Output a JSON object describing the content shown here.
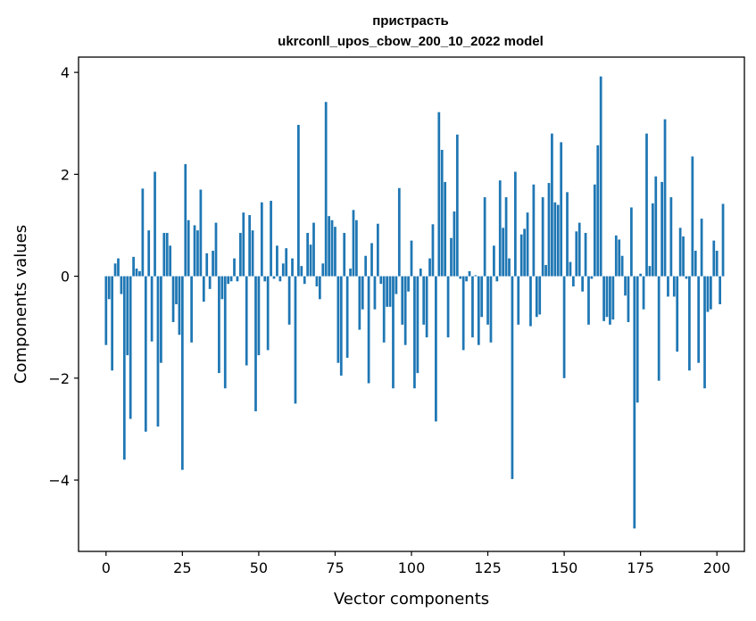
{
  "chart_data": {
    "type": "bar",
    "title_line1": "пристрасть",
    "title_line2": "ukrconll_upos_cbow_200_10_2022 model",
    "xlabel": "Vector components",
    "ylabel": "Components values",
    "xlim": [
      -9,
      209
    ],
    "ylim": [
      -5.4,
      4.3
    ],
    "xticks": [
      0,
      25,
      50,
      75,
      100,
      125,
      150,
      175,
      200
    ],
    "xtick_labels": [
      "0",
      "25",
      "50",
      "75",
      "100",
      "125",
      "150",
      "175",
      "200"
    ],
    "yticks": [
      -4,
      -2,
      0,
      2,
      4
    ],
    "ytick_labels": [
      "−4",
      "−2",
      "0",
      "2",
      "4"
    ],
    "bar_color": "#1f77b4",
    "values": [
      -1.35,
      -0.45,
      -1.85,
      0.25,
      0.35,
      -0.35,
      -3.6,
      -1.55,
      -2.8,
      0.38,
      0.15,
      0.1,
      1.72,
      -3.05,
      0.9,
      -1.28,
      2.05,
      -2.95,
      -1.7,
      0.85,
      0.85,
      0.6,
      -0.9,
      -0.55,
      -1.15,
      -3.8,
      2.2,
      1.1,
      -1.3,
      1.0,
      0.9,
      1.7,
      -0.5,
      0.45,
      -0.25,
      0.5,
      1.05,
      -1.9,
      -0.45,
      -2.2,
      -0.15,
      -0.1,
      0.35,
      -0.1,
      0.85,
      1.25,
      -1.75,
      1.2,
      0.9,
      -2.65,
      -1.55,
      1.45,
      -0.1,
      -1.45,
      1.48,
      -0.05,
      0.6,
      -0.1,
      0.25,
      0.55,
      -0.95,
      0.35,
      -2.5,
      2.97,
      0.2,
      -0.15,
      0.85,
      0.62,
      1.05,
      -0.2,
      -0.45,
      0.25,
      3.42,
      1.18,
      1.1,
      0.97,
      -1.7,
      -1.95,
      0.85,
      -1.6,
      0.15,
      1.3,
      1.1,
      -1.05,
      -0.65,
      0.4,
      -2.1,
      0.65,
      -0.65,
      1.03,
      -0.15,
      -1.3,
      -0.6,
      -0.6,
      -2.2,
      -0.35,
      1.73,
      -0.95,
      -1.35,
      -0.3,
      0.7,
      -2.2,
      -1.9,
      0.15,
      -0.95,
      -1.2,
      0.35,
      1.02,
      -2.85,
      3.22,
      2.48,
      1.85,
      -1.2,
      0.75,
      1.27,
      2.78,
      -0.05,
      -1.45,
      -0.1,
      0.1,
      -1.2,
      0.02,
      -1.35,
      -0.8,
      1.55,
      -0.95,
      -1.3,
      0.6,
      -0.1,
      1.88,
      0.95,
      1.55,
      0.35,
      -3.98,
      2.05,
      -0.95,
      0.82,
      0.93,
      1.25,
      -0.98,
      1.8,
      -0.8,
      -0.75,
      1.55,
      0.22,
      1.83,
      2.8,
      1.45,
      1.4,
      2.63,
      -2.0,
      1.65,
      0.28,
      -0.2,
      0.88,
      1.05,
      -0.3,
      0.85,
      -0.95,
      -0.05,
      1.8,
      2.57,
      3.92,
      -0.88,
      -0.8,
      -0.95,
      -0.85,
      0.8,
      0.72,
      0.4,
      -0.38,
      -0.9,
      1.35,
      -4.95,
      -2.48,
      0.05,
      -0.65,
      2.8,
      0.2,
      1.43,
      1.96,
      -2.05,
      1.85,
      3.08,
      -0.4,
      1.55,
      -0.4,
      -1.48,
      0.95,
      0.78,
      -0.05,
      -1.85,
      2.35,
      0.5,
      -1.7,
      1.13,
      -2.2,
      -0.7,
      -0.65,
      0.7,
      0.5,
      -0.55,
      1.42
    ]
  }
}
